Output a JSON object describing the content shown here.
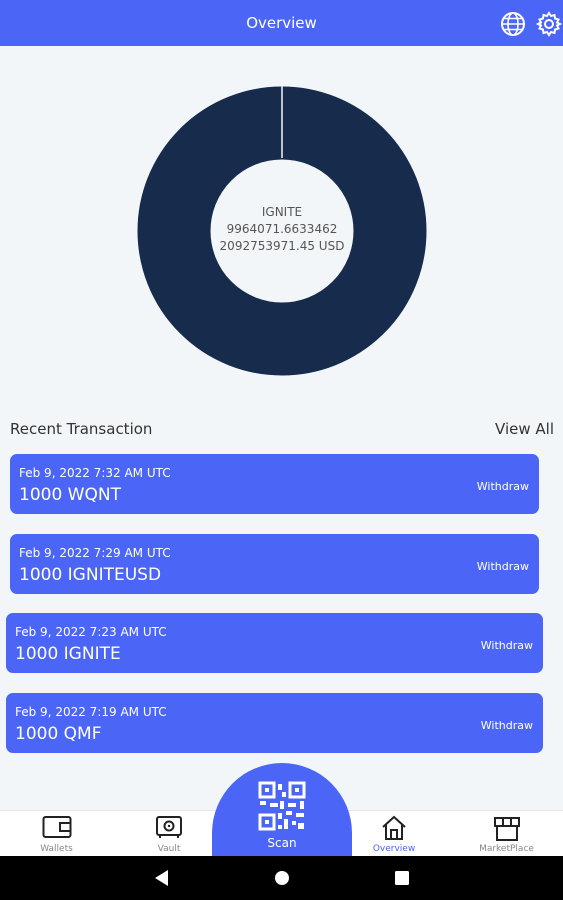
{
  "header": {
    "title": "Overview",
    "icons": [
      "globe-icon",
      "gear-icon"
    ]
  },
  "portfolio": {
    "asset": "IGNITE",
    "amount": "9964071.6633462",
    "usd_value": "2092753971.45 USD",
    "chart_color": "#172b4d"
  },
  "recent": {
    "title": "Recent Transaction",
    "view_all": "View All",
    "items": [
      {
        "date": "Feb 9, 2022 7:32 AM UTC",
        "amount": "1000 WQNT",
        "type": "Withdraw"
      },
      {
        "date": "Feb 9, 2022 7:29 AM UTC",
        "amount": "1000 IGNITEUSD",
        "type": "Withdraw"
      },
      {
        "date": "Feb 9, 2022 7:23 AM UTC",
        "amount": "1000 IGNITE",
        "type": "Withdraw"
      },
      {
        "date": "Feb 9, 2022 7:19 AM UTC",
        "amount": "1000 QMF",
        "type": "Withdraw"
      }
    ]
  },
  "tabs": {
    "wallets": "Wallets",
    "vault": "Vault",
    "scan": "Scan",
    "overview": "Overview",
    "marketplace": "MarketPlace",
    "active": "overview"
  },
  "colors": {
    "accent": "#4b66f6",
    "donut": "#172b4d",
    "background": "#f3f6f9"
  }
}
